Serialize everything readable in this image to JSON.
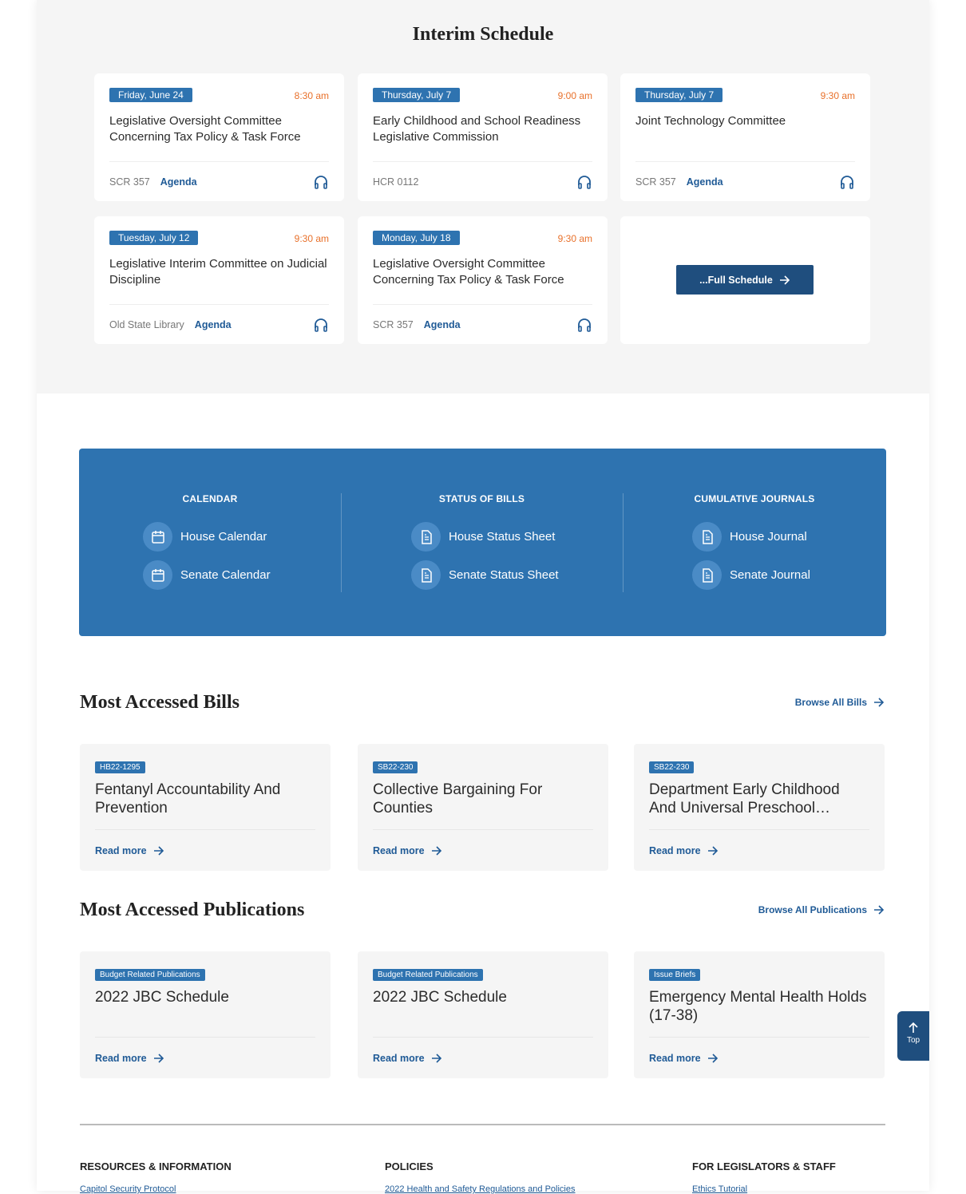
{
  "schedule": {
    "title": "Interim Schedule",
    "full_label": "...Full Schedule",
    "items": [
      {
        "date": "Friday, June 24",
        "time": "8:30 am",
        "title": "Legislative Oversight Committee Concerning Tax Policy & Task Force",
        "room": "SCR 357",
        "agenda": "Agenda"
      },
      {
        "date": "Thursday, July 7",
        "time": "9:00 am",
        "title": "Early Childhood and School Readiness Legislative Commission",
        "room": "HCR 0112",
        "agenda": ""
      },
      {
        "date": "Thursday, July 7",
        "time": "9:30 am",
        "title": "Joint Technology Committee",
        "room": "SCR 357",
        "agenda": "Agenda"
      },
      {
        "date": "Tuesday, July 12",
        "time": "9:30 am",
        "title": "Legislative Interim Committee on Judicial Discipline",
        "room": "Old State Library",
        "agenda": "Agenda"
      },
      {
        "date": "Monday, July 18",
        "time": "9:30 am",
        "title": "Legislative Oversight Committee Concerning Tax Policy & Task Force",
        "room": "SCR 357",
        "agenda": "Agenda"
      }
    ]
  },
  "quicklinks": {
    "color": "#2e73b0",
    "calendar": {
      "heading": "CALENDAR",
      "links": [
        "House Calendar",
        "Senate Calendar"
      ]
    },
    "bills": {
      "heading": "STATUS OF BILLS",
      "links": [
        "House Status Sheet",
        "Senate Status Sheet"
      ]
    },
    "journals": {
      "heading": "CUMULATIVE JOURNALS",
      "links": [
        "House Journal",
        "Senate Journal"
      ]
    }
  },
  "bills": {
    "title": "Most Accessed Bills",
    "browse": "Browse All Bills",
    "read_more": "Read more",
    "items": [
      {
        "tag": "HB22-1295",
        "title": "Fentanyl Accountability And Prevention"
      },
      {
        "tag": "SB22-230",
        "title": "Collective Bargaining For Counties"
      },
      {
        "tag": "SB22-230",
        "title": "Department Early Childhood And Universal Preschool…"
      }
    ]
  },
  "pubs": {
    "title": "Most Accessed Publications",
    "browse": "Browse All Publications",
    "read_more": "Read more",
    "items": [
      {
        "tag": "Budget Related Publications",
        "title": "2022 JBC Schedule"
      },
      {
        "tag": "Budget Related Publications",
        "title": "2022 JBC Schedule"
      },
      {
        "tag": "Issue Briefs",
        "title": "Emergency Mental Health Holds (17-38)"
      }
    ]
  },
  "top_label": "Top",
  "footer": {
    "cols": [
      {
        "heading": "RESOURCES & INFORMATION",
        "link": "Capitol Security Protocol"
      },
      {
        "heading": "POLICIES",
        "link": "2022 Health and Safety Regulations and Policies"
      },
      {
        "heading": "FOR LEGISLATORS & STAFF",
        "link": "Ethics Tutorial"
      }
    ]
  }
}
